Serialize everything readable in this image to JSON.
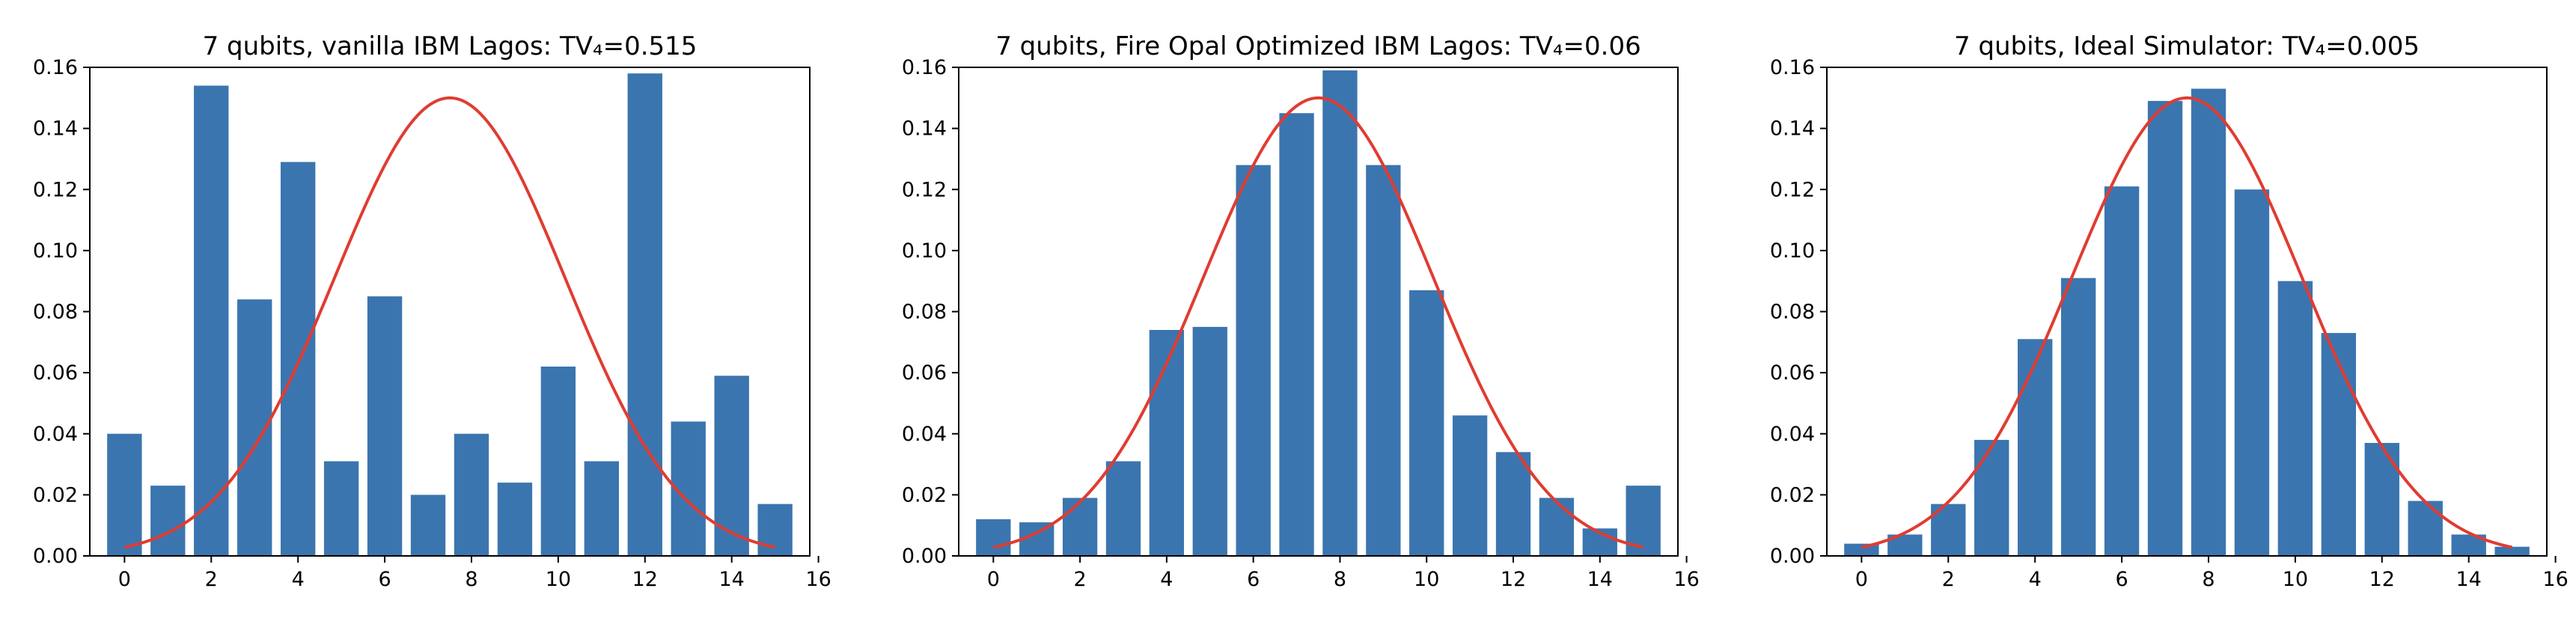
{
  "chart_data": [
    {
      "type": "bar",
      "title": "7 qubits, vanilla IBM Lagos: TV₄=0.515",
      "xlabel": "",
      "ylabel": "",
      "x": [
        0,
        1,
        2,
        3,
        4,
        5,
        6,
        7,
        8,
        9,
        10,
        11,
        12,
        13,
        14,
        15
      ],
      "values": [
        0.04,
        0.023,
        0.154,
        0.084,
        0.129,
        0.031,
        0.085,
        0.02,
        0.04,
        0.024,
        0.062,
        0.031,
        0.158,
        0.044,
        0.059,
        0.017
      ],
      "xlim": [
        -0.8,
        15.8
      ],
      "ylim": [
        0,
        0.16
      ],
      "xticks": [
        "0",
        "2",
        "4",
        "6",
        "8",
        "10",
        "12",
        "14",
        "16"
      ],
      "yticks": [
        "0.00",
        "0.02",
        "0.04",
        "0.06",
        "0.08",
        "0.10",
        "0.12",
        "0.14",
        "0.16"
      ],
      "bar_color": "#3b75af",
      "curve": {
        "type": "gaussian",
        "mean": 7.5,
        "peak": 0.15,
        "sigma": 2.66,
        "x_range": [
          0,
          15
        ],
        "color": "#e03c31"
      }
    },
    {
      "type": "bar",
      "title": "7 qubits, Fire Opal Optimized IBM Lagos: TV₄=0.06",
      "xlabel": "",
      "ylabel": "",
      "x": [
        0,
        1,
        2,
        3,
        4,
        5,
        6,
        7,
        8,
        9,
        10,
        11,
        12,
        13,
        14,
        15
      ],
      "values": [
        0.012,
        0.011,
        0.019,
        0.031,
        0.074,
        0.075,
        0.128,
        0.145,
        0.159,
        0.128,
        0.087,
        0.046,
        0.034,
        0.019,
        0.009,
        0.023
      ],
      "xlim": [
        -0.8,
        15.8
      ],
      "ylim": [
        0,
        0.16
      ],
      "xticks": [
        "0",
        "2",
        "4",
        "6",
        "8",
        "10",
        "12",
        "14",
        "16"
      ],
      "yticks": [
        "0.00",
        "0.02",
        "0.04",
        "0.06",
        "0.08",
        "0.10",
        "0.12",
        "0.14",
        "0.16"
      ],
      "bar_color": "#3b75af",
      "curve": {
        "type": "gaussian",
        "mean": 7.5,
        "peak": 0.15,
        "sigma": 2.66,
        "x_range": [
          0,
          15
        ],
        "color": "#e03c31"
      }
    },
    {
      "type": "bar",
      "title": "7 qubits, Ideal Simulator: TV₄=0.005",
      "xlabel": "",
      "ylabel": "",
      "x": [
        0,
        1,
        2,
        3,
        4,
        5,
        6,
        7,
        8,
        9,
        10,
        11,
        12,
        13,
        14,
        15
      ],
      "values": [
        0.004,
        0.007,
        0.017,
        0.038,
        0.071,
        0.091,
        0.121,
        0.149,
        0.153,
        0.12,
        0.09,
        0.073,
        0.037,
        0.018,
        0.007,
        0.003
      ],
      "xlim": [
        -0.8,
        15.8
      ],
      "ylim": [
        0,
        0.16
      ],
      "xticks": [
        "0",
        "2",
        "4",
        "6",
        "8",
        "10",
        "12",
        "14",
        "16"
      ],
      "yticks": [
        "0.00",
        "0.02",
        "0.04",
        "0.06",
        "0.08",
        "0.10",
        "0.12",
        "0.14",
        "0.16"
      ],
      "bar_color": "#3b75af",
      "curve": {
        "type": "gaussian",
        "mean": 7.5,
        "peak": 0.15,
        "sigma": 2.66,
        "x_range": [
          0,
          15
        ],
        "color": "#e03c31"
      }
    }
  ]
}
